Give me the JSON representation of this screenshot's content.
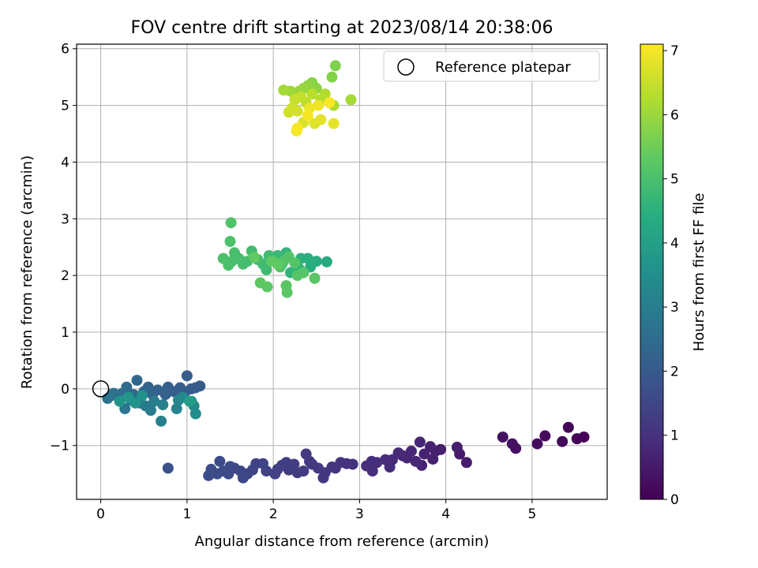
{
  "chart_data": {
    "type": "scatter",
    "title": "FOV centre drift starting at 2023/08/14 20:38:06",
    "xlabel": "Angular distance from reference (arcmin)",
    "ylabel": "Rotation from reference (arcmin)",
    "xlim": [
      -0.28,
      5.87
    ],
    "ylim": [
      -1.95,
      6.08
    ],
    "xticks": [
      0,
      1,
      2,
      3,
      4,
      5
    ],
    "xtick_labels": [
      "0",
      "1",
      "2",
      "3",
      "4",
      "5"
    ],
    "yticks": [
      -1,
      0,
      1,
      2,
      3,
      4,
      5,
      6
    ],
    "ytick_labels": [
      "−1",
      "0",
      "1",
      "2",
      "3",
      "4",
      "5",
      "6"
    ],
    "grid": true,
    "legend": {
      "position": "top-right",
      "label": "Reference platepar"
    },
    "reference_point": {
      "x": 0,
      "y": 0
    },
    "colorbar": {
      "label": "Hours from first FF file",
      "range": [
        0,
        7.1
      ],
      "ticks": [
        0,
        1,
        2,
        3,
        4,
        5,
        6,
        7
      ],
      "tick_labels": [
        "0",
        "1",
        "2",
        "3",
        "4",
        "5",
        "6",
        "7"
      ],
      "colormap": "viridis"
    },
    "points": [
      {
        "x": 5.6,
        "y": -0.85,
        "h": 0.05
      },
      {
        "x": 5.52,
        "y": -0.88,
        "h": 0.08
      },
      {
        "x": 5.42,
        "y": -0.68,
        "h": 0.1
      },
      {
        "x": 5.35,
        "y": -0.93,
        "h": 0.12
      },
      {
        "x": 5.15,
        "y": -0.83,
        "h": 0.18
      },
      {
        "x": 5.06,
        "y": -0.97,
        "h": 0.22
      },
      {
        "x": 4.81,
        "y": -1.05,
        "h": 0.3
      },
      {
        "x": 4.77,
        "y": -0.97,
        "h": 0.32
      },
      {
        "x": 4.66,
        "y": -0.85,
        "h": 0.35
      },
      {
        "x": 4.24,
        "y": -1.3,
        "h": 0.5
      },
      {
        "x": 4.16,
        "y": -1.15,
        "h": 0.52
      },
      {
        "x": 4.13,
        "y": -1.03,
        "h": 0.55
      },
      {
        "x": 3.94,
        "y": -1.07,
        "h": 0.6
      },
      {
        "x": 3.88,
        "y": -1.1,
        "h": 0.62
      },
      {
        "x": 3.85,
        "y": -1.24,
        "h": 0.64
      },
      {
        "x": 3.82,
        "y": -1.02,
        "h": 0.66
      },
      {
        "x": 3.75,
        "y": -1.15,
        "h": 0.68
      },
      {
        "x": 3.72,
        "y": -1.35,
        "h": 0.7
      },
      {
        "x": 3.7,
        "y": -0.94,
        "h": 0.72
      },
      {
        "x": 3.65,
        "y": -1.28,
        "h": 0.74
      },
      {
        "x": 3.6,
        "y": -1.1,
        "h": 0.76
      },
      {
        "x": 3.55,
        "y": -1.22,
        "h": 0.78
      },
      {
        "x": 3.5,
        "y": -1.18,
        "h": 0.8
      },
      {
        "x": 3.45,
        "y": -1.13,
        "h": 0.82
      },
      {
        "x": 3.38,
        "y": -1.25,
        "h": 0.84
      },
      {
        "x": 3.35,
        "y": -1.38,
        "h": 0.86
      },
      {
        "x": 3.3,
        "y": -1.25,
        "h": 0.88
      },
      {
        "x": 3.2,
        "y": -1.3,
        "h": 0.9
      },
      {
        "x": 3.15,
        "y": -1.45,
        "h": 0.92
      },
      {
        "x": 3.14,
        "y": -1.28,
        "h": 0.94
      },
      {
        "x": 3.08,
        "y": -1.36,
        "h": 0.96
      },
      {
        "x": 2.92,
        "y": -1.33,
        "h": 1.0
      },
      {
        "x": 2.85,
        "y": -1.32,
        "h": 1.02
      },
      {
        "x": 2.78,
        "y": -1.3,
        "h": 1.04
      },
      {
        "x": 2.72,
        "y": -1.4,
        "h": 1.06
      },
      {
        "x": 2.68,
        "y": -1.38,
        "h": 1.08
      },
      {
        "x": 2.6,
        "y": -1.48,
        "h": 1.1
      },
      {
        "x": 2.58,
        "y": -1.57,
        "h": 1.12
      },
      {
        "x": 2.52,
        "y": -1.4,
        "h": 1.14
      },
      {
        "x": 2.45,
        "y": -1.33,
        "h": 1.16
      },
      {
        "x": 2.42,
        "y": -1.28,
        "h": 1.18
      },
      {
        "x": 2.38,
        "y": -1.15,
        "h": 1.2
      },
      {
        "x": 2.35,
        "y": -1.45,
        "h": 1.22
      },
      {
        "x": 2.28,
        "y": -1.48,
        "h": 1.24
      },
      {
        "x": 2.24,
        "y": -1.33,
        "h": 1.26
      },
      {
        "x": 2.18,
        "y": -1.43,
        "h": 1.28
      },
      {
        "x": 2.15,
        "y": -1.3,
        "h": 1.3
      },
      {
        "x": 2.1,
        "y": -1.35,
        "h": 1.32
      },
      {
        "x": 2.05,
        "y": -1.42,
        "h": 1.34
      },
      {
        "x": 2.02,
        "y": -1.5,
        "h": 1.36
      },
      {
        "x": 1.92,
        "y": -1.45,
        "h": 1.4
      },
      {
        "x": 1.88,
        "y": -1.32,
        "h": 1.42
      },
      {
        "x": 1.8,
        "y": -1.32,
        "h": 1.44
      },
      {
        "x": 1.76,
        "y": -1.43,
        "h": 1.46
      },
      {
        "x": 1.7,
        "y": -1.5,
        "h": 1.48
      },
      {
        "x": 1.65,
        "y": -1.57,
        "h": 1.5
      },
      {
        "x": 1.62,
        "y": -1.45,
        "h": 1.52
      },
      {
        "x": 1.55,
        "y": -1.4,
        "h": 1.54
      },
      {
        "x": 1.5,
        "y": -1.37,
        "h": 1.56
      },
      {
        "x": 1.48,
        "y": -1.5,
        "h": 1.58
      },
      {
        "x": 1.42,
        "y": -1.45,
        "h": 1.6
      },
      {
        "x": 1.38,
        "y": -1.28,
        "h": 1.62
      },
      {
        "x": 1.35,
        "y": -1.5,
        "h": 1.64
      },
      {
        "x": 1.28,
        "y": -1.42,
        "h": 1.66
      },
      {
        "x": 1.25,
        "y": -1.53,
        "h": 1.68
      },
      {
        "x": 0.78,
        "y": -1.4,
        "h": 1.75
      },
      {
        "x": 1.15,
        "y": 0.05,
        "h": 2.0
      },
      {
        "x": 1.1,
        "y": 0.02,
        "h": 2.02
      },
      {
        "x": 1.05,
        "y": 0.0,
        "h": 2.04
      },
      {
        "x": 0.98,
        "y": -0.05,
        "h": 2.06
      },
      {
        "x": 1.0,
        "y": 0.23,
        "h": 2.08
      },
      {
        "x": 0.92,
        "y": 0.02,
        "h": 2.1
      },
      {
        "x": 0.85,
        "y": -0.05,
        "h": 2.12
      },
      {
        "x": 0.78,
        "y": 0.03,
        "h": 2.14
      },
      {
        "x": 0.75,
        "y": -0.1,
        "h": 2.16
      },
      {
        "x": 0.66,
        "y": -0.02,
        "h": 2.2
      },
      {
        "x": 0.6,
        "y": -0.1,
        "h": 2.24
      },
      {
        "x": 0.55,
        "y": 0.03,
        "h": 2.28
      },
      {
        "x": 0.5,
        "y": -0.05,
        "h": 2.32
      },
      {
        "x": 0.42,
        "y": 0.15,
        "h": 2.36
      },
      {
        "x": 0.38,
        "y": -0.1,
        "h": 2.4
      },
      {
        "x": 0.3,
        "y": 0.03,
        "h": 2.45
      },
      {
        "x": 0.25,
        "y": -0.08,
        "h": 2.5
      },
      {
        "x": 0.2,
        "y": -0.12,
        "h": 2.55
      },
      {
        "x": 0.15,
        "y": -0.08,
        "h": 2.6
      },
      {
        "x": 0.08,
        "y": -0.17,
        "h": 2.65
      },
      {
        "x": 0.12,
        "y": -0.12,
        "h": 2.7
      },
      {
        "x": 0.28,
        "y": -0.35,
        "h": 2.75
      },
      {
        "x": 0.35,
        "y": -0.2,
        "h": 2.8
      },
      {
        "x": 0.45,
        "y": -0.25,
        "h": 2.85
      },
      {
        "x": 0.52,
        "y": -0.3,
        "h": 2.9
      },
      {
        "x": 0.58,
        "y": -0.38,
        "h": 2.95
      },
      {
        "x": 0.62,
        "y": -0.22,
        "h": 3.0
      },
      {
        "x": 0.7,
        "y": -0.57,
        "h": 3.05
      },
      {
        "x": 0.72,
        "y": -0.28,
        "h": 3.1
      },
      {
        "x": 0.88,
        "y": -0.35,
        "h": 3.15
      },
      {
        "x": 0.9,
        "y": -0.2,
        "h": 3.2
      },
      {
        "x": 0.95,
        "y": -0.15,
        "h": 3.3
      },
      {
        "x": 1.08,
        "y": -0.3,
        "h": 3.35
      },
      {
        "x": 1.1,
        "y": -0.44,
        "h": 3.4
      },
      {
        "x": 1.05,
        "y": -0.22,
        "h": 3.5
      },
      {
        "x": 0.48,
        "y": -0.12,
        "h": 3.55
      },
      {
        "x": 0.4,
        "y": -0.25,
        "h": 3.6
      },
      {
        "x": 0.22,
        "y": -0.22,
        "h": 3.65
      },
      {
        "x": 0.32,
        "y": -0.15,
        "h": 3.7
      },
      {
        "x": 1.03,
        "y": -0.22,
        "h": 3.9
      },
      {
        "x": 2.62,
        "y": 2.24,
        "h": 4.3
      },
      {
        "x": 2.5,
        "y": 2.25,
        "h": 4.35
      },
      {
        "x": 2.43,
        "y": 2.15,
        "h": 4.4
      },
      {
        "x": 2.4,
        "y": 2.3,
        "h": 4.45
      },
      {
        "x": 2.32,
        "y": 2.3,
        "h": 4.5
      },
      {
        "x": 2.3,
        "y": 2.12,
        "h": 4.55
      },
      {
        "x": 2.2,
        "y": 2.05,
        "h": 4.6
      },
      {
        "x": 2.15,
        "y": 2.4,
        "h": 4.65
      },
      {
        "x": 2.1,
        "y": 2.2,
        "h": 4.7
      },
      {
        "x": 2.05,
        "y": 2.35,
        "h": 4.75
      },
      {
        "x": 2.0,
        "y": 2.3,
        "h": 4.8
      },
      {
        "x": 1.95,
        "y": 2.35,
        "h": 4.82
      },
      {
        "x": 1.92,
        "y": 2.1,
        "h": 4.84
      },
      {
        "x": 1.88,
        "y": 2.2,
        "h": 4.86
      },
      {
        "x": 1.82,
        "y": 2.28,
        "h": 4.88
      },
      {
        "x": 1.75,
        "y": 2.43,
        "h": 4.9
      },
      {
        "x": 1.7,
        "y": 2.25,
        "h": 4.92
      },
      {
        "x": 1.65,
        "y": 2.2,
        "h": 4.94
      },
      {
        "x": 1.6,
        "y": 2.3,
        "h": 4.96
      },
      {
        "x": 1.55,
        "y": 2.4,
        "h": 4.98
      },
      {
        "x": 1.52,
        "y": 2.25,
        "h": 5.0
      },
      {
        "x": 1.48,
        "y": 2.18,
        "h": 5.02
      },
      {
        "x": 1.42,
        "y": 2.3,
        "h": 5.04
      },
      {
        "x": 1.5,
        "y": 2.6,
        "h": 5.06
      },
      {
        "x": 1.51,
        "y": 2.93,
        "h": 5.08
      },
      {
        "x": 2.08,
        "y": 2.15,
        "h": 5.1
      },
      {
        "x": 2.12,
        "y": 2.25,
        "h": 5.12
      },
      {
        "x": 2.18,
        "y": 2.33,
        "h": 5.14
      },
      {
        "x": 2.25,
        "y": 2.22,
        "h": 5.16
      },
      {
        "x": 2.35,
        "y": 2.05,
        "h": 5.18
      },
      {
        "x": 2.28,
        "y": 2.0,
        "h": 5.2
      },
      {
        "x": 2.48,
        "y": 1.95,
        "h": 5.22
      },
      {
        "x": 2.15,
        "y": 1.82,
        "h": 5.24
      },
      {
        "x": 2.16,
        "y": 1.7,
        "h": 5.26
      },
      {
        "x": 1.93,
        "y": 1.8,
        "h": 5.28
      },
      {
        "x": 1.85,
        "y": 1.87,
        "h": 5.3
      },
      {
        "x": 1.98,
        "y": 2.25,
        "h": 5.32
      },
      {
        "x": 2.05,
        "y": 2.2,
        "h": 5.34
      },
      {
        "x": 1.78,
        "y": 2.32,
        "h": 5.36
      },
      {
        "x": 2.72,
        "y": 5.7,
        "h": 5.7
      },
      {
        "x": 2.68,
        "y": 5.5,
        "h": 5.75
      },
      {
        "x": 2.45,
        "y": 5.4,
        "h": 5.8
      },
      {
        "x": 2.5,
        "y": 5.3,
        "h": 5.85
      },
      {
        "x": 2.4,
        "y": 5.35,
        "h": 5.9
      },
      {
        "x": 2.35,
        "y": 5.3,
        "h": 5.95
      },
      {
        "x": 2.3,
        "y": 5.25,
        "h": 6.0
      },
      {
        "x": 2.2,
        "y": 5.25,
        "h": 6.05
      },
      {
        "x": 2.12,
        "y": 5.27,
        "h": 6.1
      },
      {
        "x": 2.9,
        "y": 5.1,
        "h": 6.15
      },
      {
        "x": 2.7,
        "y": 5.0,
        "h": 6.2
      },
      {
        "x": 2.6,
        "y": 5.2,
        "h": 6.25
      },
      {
        "x": 2.55,
        "y": 5.1,
        "h": 6.3
      },
      {
        "x": 2.45,
        "y": 5.2,
        "h": 6.35
      },
      {
        "x": 2.38,
        "y": 5.05,
        "h": 6.4
      },
      {
        "x": 2.32,
        "y": 5.15,
        "h": 6.45
      },
      {
        "x": 2.25,
        "y": 5.1,
        "h": 6.5
      },
      {
        "x": 2.22,
        "y": 4.95,
        "h": 6.55
      },
      {
        "x": 2.18,
        "y": 4.88,
        "h": 6.6
      },
      {
        "x": 2.28,
        "y": 4.9,
        "h": 6.65
      },
      {
        "x": 2.35,
        "y": 4.7,
        "h": 6.7
      },
      {
        "x": 2.48,
        "y": 4.68,
        "h": 6.75
      },
      {
        "x": 2.55,
        "y": 4.75,
        "h": 6.8
      },
      {
        "x": 2.7,
        "y": 4.68,
        "h": 6.85
      },
      {
        "x": 2.42,
        "y": 4.95,
        "h": 6.9
      },
      {
        "x": 2.52,
        "y": 5.0,
        "h": 6.95
      },
      {
        "x": 2.27,
        "y": 4.55,
        "h": 7.0
      },
      {
        "x": 2.28,
        "y": 4.6,
        "h": 7.02
      },
      {
        "x": 2.4,
        "y": 4.82,
        "h": 7.05
      },
      {
        "x": 2.65,
        "y": 5.05,
        "h": 7.08
      }
    ]
  }
}
